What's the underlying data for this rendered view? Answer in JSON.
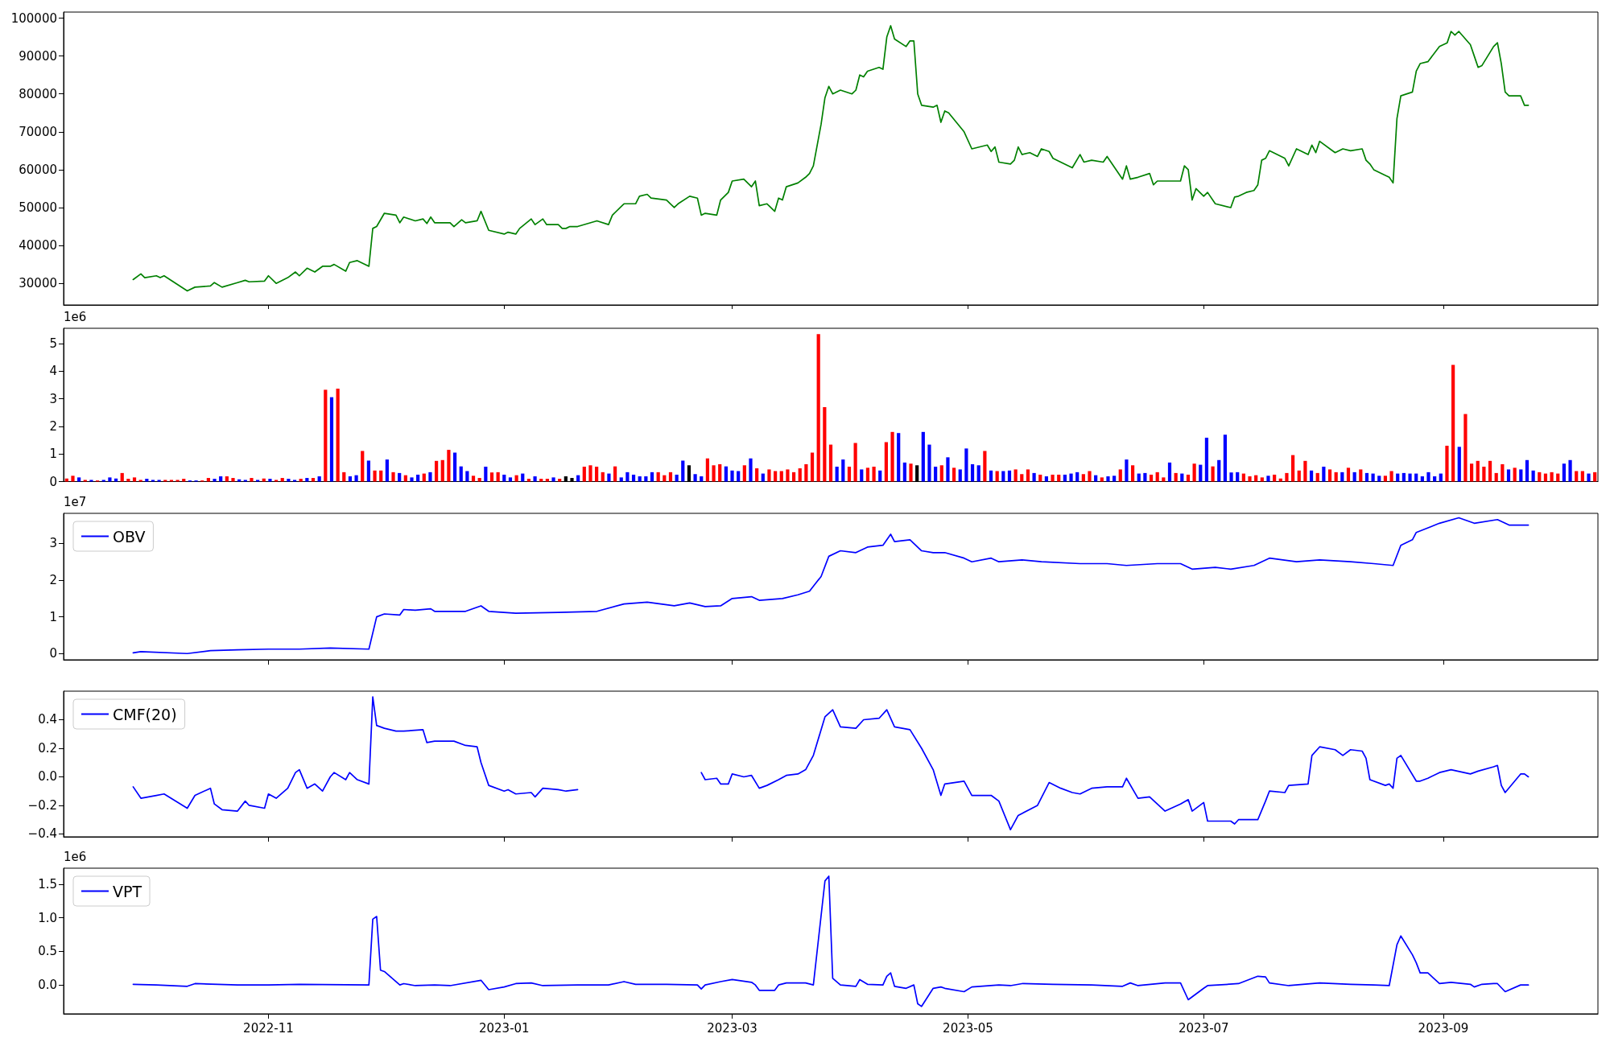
{
  "chart_data": [
    {
      "type": "line",
      "x": [
        "2022-09-27",
        "2022-09-29",
        "2022-09-30",
        "2022-10-03",
        "2022-10-04",
        "2022-10-05",
        "2022-10-11",
        "2022-10-13",
        "2022-10-17",
        "2022-10-18",
        "2022-10-20",
        "2022-10-24",
        "2022-10-26",
        "2022-10-27",
        "2022-10-31",
        "2022-11-01",
        "2022-11-03",
        "2022-11-06",
        "2022-11-08",
        "2022-11-09",
        "2022-11-11",
        "2022-11-13",
        "2022-11-15",
        "2022-11-17",
        "2022-11-18",
        "2022-11-21",
        "2022-11-22",
        "2022-11-24",
        "2022-11-27",
        "2022-11-28",
        "2022-11-29",
        "2022-12-01",
        "2022-12-04",
        "2022-12-05",
        "2022-12-06",
        "2022-12-09",
        "2022-12-11",
        "2022-12-12",
        "2022-12-13",
        "2022-12-14",
        "2022-12-18",
        "2022-12-19",
        "2022-12-21",
        "2022-12-22",
        "2022-12-25",
        "2022-12-26",
        "2022-12-28",
        "2023-01-01",
        "2023-01-02",
        "2023-01-04",
        "2023-01-05",
        "2023-01-08",
        "2023-01-09",
        "2023-01-11",
        "2023-01-12",
        "2023-01-15",
        "2023-01-16",
        "2023-01-17",
        "2023-01-18",
        "2023-01-20",
        "2023-01-25",
        "2023-01-28",
        "2023-01-29",
        "2023-02-01",
        "2023-02-04",
        "2023-02-05",
        "2023-02-07",
        "2023-02-08",
        "2023-02-12",
        "2023-02-14",
        "2023-02-15",
        "2023-02-18",
        "2023-02-20",
        "2023-02-21",
        "2023-02-22",
        "2023-02-25",
        "2023-02-26",
        "2023-02-28",
        "2023-03-01",
        "2023-03-04",
        "2023-03-06",
        "2023-03-07",
        "2023-03-08",
        "2023-03-10",
        "2023-03-12",
        "2023-03-13",
        "2023-03-14",
        "2023-03-15",
        "2023-03-18",
        "2023-03-20",
        "2023-03-21",
        "2023-03-22",
        "2023-03-24",
        "2023-03-25",
        "2023-03-26",
        "2023-03-27",
        "2023-03-29",
        "2023-04-01",
        "2023-04-02",
        "2023-04-03",
        "2023-04-04",
        "2023-04-05",
        "2023-04-08",
        "2023-04-09",
        "2023-04-10",
        "2023-04-11",
        "2023-04-12",
        "2023-04-15",
        "2023-04-16",
        "2023-04-17",
        "2023-04-18",
        "2023-04-19",
        "2023-04-22",
        "2023-04-23",
        "2023-04-24",
        "2023-04-25",
        "2023-04-26",
        "2023-04-30",
        "2023-05-02",
        "2023-05-06",
        "2023-05-07",
        "2023-05-08",
        "2023-05-09",
        "2023-05-12",
        "2023-05-13",
        "2023-05-14",
        "2023-05-15",
        "2023-05-17",
        "2023-05-19",
        "2023-05-20",
        "2023-05-22",
        "2023-05-23",
        "2023-05-25",
        "2023-05-28",
        "2023-05-30",
        "2023-05-31",
        "2023-06-02",
        "2023-06-05",
        "2023-06-06",
        "2023-06-10",
        "2023-06-11",
        "2023-06-12",
        "2023-06-14",
        "2023-06-17",
        "2023-06-18",
        "2023-06-19",
        "2023-06-21",
        "2023-06-25",
        "2023-06-26",
        "2023-06-27",
        "2023-06-28",
        "2023-06-29",
        "2023-07-01",
        "2023-07-02",
        "2023-07-04",
        "2023-07-08",
        "2023-07-09",
        "2023-07-10",
        "2023-07-12",
        "2023-07-14",
        "2023-07-15",
        "2023-07-16",
        "2023-07-17",
        "2023-07-18",
        "2023-07-22",
        "2023-07-23",
        "2023-07-25",
        "2023-07-28",
        "2023-07-29",
        "2023-07-30",
        "2023-07-31",
        "2023-08-04",
        "2023-08-06",
        "2023-08-08",
        "2023-08-11",
        "2023-08-12",
        "2023-08-13",
        "2023-08-14",
        "2023-08-17",
        "2023-08-18",
        "2023-08-19",
        "2023-08-20",
        "2023-08-21",
        "2023-08-24",
        "2023-08-25",
        "2023-08-26",
        "2023-08-28",
        "2023-08-31",
        "2023-09-02",
        "2023-09-03",
        "2023-09-04",
        "2023-09-05",
        "2023-09-08",
        "2023-09-09",
        "2023-09-10",
        "2023-09-11",
        "2023-09-14",
        "2023-09-15",
        "2023-09-16",
        "2023-09-17",
        "2023-09-18",
        "2023-09-21",
        "2023-09-22",
        "2023-09-23"
      ],
      "series": [
        {
          "color": "#008000",
          "values": [
            31000,
            32500,
            31500,
            32000,
            31500,
            32000,
            28000,
            29000,
            29300,
            30200,
            29000,
            30200,
            30800,
            30400,
            30600,
            32000,
            30000,
            31500,
            33000,
            32000,
            34000,
            33000,
            34500,
            34500,
            35000,
            33200,
            35500,
            36000,
            34500,
            44500,
            45000,
            48500,
            48000,
            46000,
            47500,
            46500,
            47000,
            45800,
            47500,
            46000,
            46000,
            45000,
            46800,
            46000,
            46500,
            49000,
            44000,
            43000,
            43500,
            43000,
            44500,
            47000,
            45500,
            47000,
            45500,
            45500,
            44500,
            44500,
            45000,
            45000,
            46500,
            45500,
            48000,
            51000,
            51000,
            53000,
            53500,
            52500,
            52000,
            50000,
            51000,
            53000,
            52500,
            48000,
            48500,
            48000,
            52000,
            54000,
            57000,
            57500,
            55500,
            57000,
            50500,
            51000,
            49000,
            52500,
            52000,
            55500,
            56500,
            58000,
            59000,
            61000,
            72000,
            79000,
            82000,
            80000,
            81000,
            80000,
            81000,
            85000,
            84500,
            86000,
            87000,
            86500,
            95000,
            98000,
            94500,
            92500,
            94000,
            94000,
            80000,
            77000,
            76500,
            77000,
            72500,
            75500,
            75000,
            70000,
            65500,
            66500,
            64800,
            66000,
            62000,
            61500,
            62500,
            66000,
            64000,
            64500,
            63500,
            65500,
            64800,
            63000,
            62000,
            60500,
            64000,
            62000,
            62500,
            62000,
            63500,
            57500,
            61000,
            57500,
            58000,
            59000,
            56000,
            57000,
            57000,
            57000,
            61000,
            60000,
            52000,
            55000,
            53000,
            54000,
            51000,
            50000,
            52800,
            53000,
            54000,
            54500,
            56000,
            62500,
            63000,
            65000,
            63000,
            61000,
            65500,
            64000,
            66500,
            64500,
            67500,
            64500,
            65500,
            65000,
            65500,
            62500,
            61500,
            60000,
            58500,
            58000,
            56500,
            73500,
            79500,
            80500,
            86000,
            88000,
            88500,
            92500,
            93500,
            96500,
            95500,
            96500,
            93000,
            90000,
            87000,
            87500,
            92500,
            93500,
            88000,
            80500,
            79500,
            79500,
            77000,
            77000
          ]
        }
      ],
      "xlim": [
        "2022-09-09",
        "2023-10-11"
      ],
      "xticks": [
        "2022-11",
        "2023-01",
        "2023-03",
        "2023-05",
        "2023-07",
        "2023-09"
      ],
      "ylim": [
        24300,
        101600
      ],
      "yticks": [
        30000,
        40000,
        50000,
        60000,
        70000,
        80000,
        90000,
        100000
      ],
      "tick_labels": "y"
    },
    {
      "type": "bar",
      "categories": [
        null,
        null,
        null,
        null,
        null,
        null,
        null,
        null,
        null,
        null,
        null,
        null,
        null,
        null,
        null,
        null,
        null,
        null,
        null,
        null,
        null,
        null,
        null,
        null,
        null,
        null,
        null,
        null,
        null,
        null,
        null,
        null,
        null,
        null,
        null,
        null,
        null,
        null,
        null,
        null,
        null,
        null,
        null,
        null,
        null,
        null,
        null,
        null,
        null,
        null,
        null,
        null,
        null,
        null,
        null,
        null,
        null,
        null,
        null,
        null,
        null,
        null,
        null,
        null,
        null,
        null,
        null,
        null,
        null,
        null,
        null,
        null,
        null,
        null,
        null,
        null,
        null,
        null,
        null,
        null,
        null,
        null,
        null,
        null,
        null,
        null,
        null,
        null,
        null,
        null,
        null,
        null,
        null,
        null,
        null,
        null,
        null,
        null,
        null,
        null,
        null,
        null,
        null,
        null,
        null,
        null,
        null,
        null,
        null,
        null,
        null,
        null,
        null,
        null,
        null,
        null,
        null,
        null,
        null,
        null,
        null,
        null,
        null,
        null,
        null,
        null,
        null,
        null,
        null,
        null,
        null,
        null,
        null,
        null,
        null,
        null,
        null,
        null,
        null,
        null,
        null,
        null,
        null,
        null,
        null,
        null,
        null,
        null,
        null,
        null,
        null,
        null,
        null,
        null,
        null,
        null,
        null,
        null,
        null,
        null,
        null,
        null,
        null,
        null,
        null,
        null,
        null,
        null,
        null,
        null,
        null,
        null,
        null,
        null,
        null,
        null,
        null,
        null,
        null,
        null,
        null,
        null,
        null,
        null,
        null,
        null,
        null,
        null,
        null,
        null,
        null,
        null,
        null,
        null,
        null,
        null,
        null,
        null,
        null,
        null,
        null,
        null,
        null,
        null,
        null,
        null,
        null,
        null,
        null,
        null,
        null,
        null,
        null,
        null,
        null,
        null,
        null,
        null,
        null,
        null,
        null,
        null,
        null,
        null,
        null,
        null,
        null,
        null,
        null,
        null,
        null,
        null,
        null,
        null,
        null,
        null,
        null,
        null,
        null,
        null,
        null,
        null,
        null,
        null,
        null,
        null,
        null,
        null,
        null
      ],
      "values": [
        0.11,
        0.21,
        0.15,
        0.06,
        0.06,
        0.04,
        0.06,
        0.15,
        0.11,
        0.31,
        0.1,
        0.15,
        0.06,
        0.1,
        0.06,
        0.06,
        0.06,
        0.06,
        0.06,
        0.1,
        0.04,
        0.04,
        0.04,
        0.13,
        0.1,
        0.19,
        0.19,
        0.13,
        0.08,
        0.06,
        0.13,
        0.06,
        0.11,
        0.1,
        0.06,
        0.13,
        0.1,
        0.06,
        0.1,
        0.13,
        0.13,
        0.19,
        3.33,
        3.06,
        3.37,
        0.34,
        0.19,
        0.23,
        1.11,
        0.76,
        0.4,
        0.4,
        0.8,
        0.34,
        0.31,
        0.23,
        0.15,
        0.25,
        0.29,
        0.34,
        0.75,
        0.78,
        1.15,
        1.05,
        0.55,
        0.38,
        0.21,
        0.13,
        0.54,
        0.33,
        0.34,
        0.25,
        0.15,
        0.23,
        0.29,
        0.1,
        0.19,
        0.1,
        0.1,
        0.15,
        0.1,
        0.19,
        0.13,
        0.23,
        0.54,
        0.59,
        0.54,
        0.34,
        0.29,
        0.55,
        0.15,
        0.34,
        0.25,
        0.19,
        0.19,
        0.34,
        0.34,
        0.23,
        0.34,
        0.25,
        0.76,
        0.59,
        0.27,
        0.19,
        0.84,
        0.59,
        0.63,
        0.55,
        0.4,
        0.38,
        0.59,
        0.84,
        0.48,
        0.29,
        0.44,
        0.38,
        0.38,
        0.44,
        0.34,
        0.48,
        0.63,
        1.05,
        5.35,
        2.7,
        1.34,
        0.54,
        0.8,
        0.54,
        1.4,
        0.44,
        0.5,
        0.54,
        0.4,
        1.43,
        1.8,
        1.76,
        0.69,
        0.65,
        0.59,
        1.8,
        1.34,
        0.54,
        0.59,
        0.88,
        0.5,
        0.44,
        1.2,
        0.63,
        0.59,
        1.11,
        0.4,
        0.38,
        0.38,
        0.4,
        0.44,
        0.27,
        0.44,
        0.31,
        0.25,
        0.19,
        0.25,
        0.25,
        0.25,
        0.29,
        0.34,
        0.27,
        0.38,
        0.23,
        0.15,
        0.19,
        0.21,
        0.44,
        0.8,
        0.59,
        0.29,
        0.31,
        0.25,
        0.34,
        0.15,
        0.69,
        0.31,
        0.29,
        0.25,
        0.65,
        0.61,
        1.59,
        0.55,
        0.78,
        1.7,
        0.33,
        0.34,
        0.29,
        0.19,
        0.23,
        0.15,
        0.21,
        0.25,
        0.11,
        0.31,
        0.96,
        0.4,
        0.75,
        0.4,
        0.31,
        0.54,
        0.44,
        0.34,
        0.34,
        0.5,
        0.34,
        0.44,
        0.31,
        0.29,
        0.21,
        0.21,
        0.38,
        0.29,
        0.31,
        0.29,
        0.29,
        0.19,
        0.34,
        0.19,
        0.29,
        1.3,
        4.23,
        1.26,
        2.45,
        0.65,
        0.75,
        0.54,
        0.75,
        0.31,
        0.63,
        0.44,
        0.5,
        0.44,
        0.78,
        0.4,
        0.34,
        0.29,
        0.34,
        0.29,
        0.65,
        0.78,
        0.38,
        0.38,
        0.29,
        0.34
      ],
      "colors": [
        "#ff0000",
        "#ff0000",
        "#0000ff",
        "#ff0000",
        "#0000ff",
        "#ff0000",
        "#0000ff",
        "#0000ff",
        "#0000ff",
        "#ff0000",
        "#ff0000",
        "#ff0000",
        "#ff0000",
        "#0000ff",
        "#0000ff",
        "#0000ff",
        "#ff0000",
        "#ff0000",
        "#ff0000",
        "#ff0000",
        "#0000ff",
        "#0000ff",
        "#ff0000",
        "#ff0000",
        "#0000ff",
        "#0000ff",
        "#ff0000",
        "#ff0000",
        "#0000ff",
        "#0000ff",
        "#ff0000",
        "#0000ff",
        "#ff0000",
        "#0000ff",
        "#ff0000",
        "#ff0000",
        "#0000ff",
        "#0000ff",
        "#ff0000",
        "#0000ff",
        "#ff0000",
        "#0000ff",
        "#ff0000",
        "#0000ff",
        "#ff0000",
        "#ff0000",
        "#0000ff",
        "#0000ff",
        "#ff0000",
        "#0000ff",
        "#ff0000",
        "#ff0000",
        "#0000ff",
        "#ff0000",
        "#0000ff",
        "#ff0000",
        "#0000ff",
        "#0000ff",
        "#ff0000",
        "#0000ff",
        "#ff0000",
        "#ff0000",
        "#ff0000",
        "#0000ff",
        "#0000ff",
        "#0000ff",
        "#ff0000",
        "#ff0000",
        "#0000ff",
        "#ff0000",
        "#ff0000",
        "#0000ff",
        "#0000ff",
        "#ff0000",
        "#0000ff",
        "#ff0000",
        "#0000ff",
        "#ff0000",
        "#ff0000",
        "#0000ff",
        "#ff0000",
        "#000000",
        "#000000",
        "#0000ff",
        "#ff0000",
        "#ff0000",
        "#ff0000",
        "#ff0000",
        "#0000ff",
        "#ff0000",
        "#0000ff",
        "#0000ff",
        "#0000ff",
        "#0000ff",
        "#0000ff",
        "#0000ff",
        "#ff0000",
        "#ff0000",
        "#ff0000",
        "#0000ff",
        "#0000ff",
        "#000000",
        "#0000ff",
        "#0000ff",
        "#ff0000",
        "#ff0000",
        "#ff0000",
        "#0000ff",
        "#0000ff",
        "#0000ff",
        "#ff0000",
        "#0000ff",
        "#ff0000",
        "#0000ff",
        "#ff0000",
        "#ff0000",
        "#ff0000",
        "#ff0000",
        "#ff0000",
        "#ff0000",
        "#ff0000",
        "#ff0000",
        "#ff0000",
        "#ff0000",
        "#ff0000",
        "#0000ff",
        "#0000ff",
        "#ff0000",
        "#ff0000",
        "#0000ff",
        "#ff0000",
        "#ff0000",
        "#0000ff",
        "#ff0000",
        "#ff0000",
        "#0000ff",
        "#0000ff",
        "#ff0000",
        "#000000",
        "#0000ff",
        "#0000ff",
        "#0000ff",
        "#ff0000",
        "#0000ff",
        "#ff0000",
        "#0000ff",
        "#0000ff",
        "#0000ff",
        "#0000ff",
        "#ff0000",
        "#0000ff",
        "#ff0000",
        "#0000ff",
        "#0000ff",
        "#ff0000",
        "#ff0000",
        "#ff0000",
        "#0000ff",
        "#ff0000",
        "#0000ff",
        "#ff0000",
        "#ff0000",
        "#0000ff",
        "#0000ff",
        "#0000ff",
        "#ff0000",
        "#ff0000",
        "#0000ff",
        "#ff0000",
        "#0000ff",
        "#0000ff",
        "#ff0000",
        "#0000ff",
        "#ff0000",
        "#0000ff",
        "#0000ff",
        "#ff0000",
        "#ff0000",
        "#ff0000",
        "#0000ff",
        "#ff0000",
        "#0000ff",
        "#ff0000",
        "#ff0000",
        "#0000ff",
        "#0000ff",
        "#ff0000",
        "#0000ff",
        "#0000ff",
        "#0000ff",
        "#0000ff",
        "#ff0000",
        "#ff0000",
        "#ff0000",
        "#ff0000",
        "#0000ff",
        "#ff0000",
        "#ff0000",
        "#ff0000",
        "#ff0000",
        "#ff0000",
        "#ff0000",
        "#0000ff",
        "#ff0000",
        "#0000ff",
        "#ff0000",
        "#ff0000",
        "#0000ff",
        "#ff0000",
        "#0000ff",
        "#ff0000",
        "#0000ff",
        "#0000ff",
        "#0000ff",
        "#ff0000",
        "#ff0000",
        "#0000ff",
        "#0000ff",
        "#0000ff",
        "#0000ff",
        "#0000ff",
        "#0000ff",
        "#0000ff",
        "#0000ff",
        "#ff0000",
        "#ff0000",
        "#0000ff",
        "#ff0000",
        "#ff0000",
        "#ff0000",
        "#ff0000",
        "#ff0000",
        "#ff0000",
        "#ff0000",
        "#0000ff",
        "#ff0000",
        "#0000ff",
        "#0000ff",
        "#0000ff",
        "#ff0000",
        "#ff0000",
        "#ff0000",
        "#ff0000",
        "#0000ff",
        "#0000ff",
        "#ff0000",
        "#ff0000",
        "#0000ff",
        "#ff0000"
      ],
      "ylim": [
        0,
        5.56
      ],
      "yticks": [
        0,
        1,
        2,
        3,
        4,
        5
      ],
      "tick_labels": "y",
      "annotations": [
        "1e6"
      ]
    },
    {
      "type": "line",
      "x": [
        "2022-09-27",
        "2022-09-29",
        "2022-10-11",
        "2022-10-17",
        "2022-10-24",
        "2022-11-01",
        "2022-11-09",
        "2022-11-17",
        "2022-11-27",
        "2022-11-29",
        "2022-12-01",
        "2022-12-05",
        "2022-12-06",
        "2022-12-09",
        "2022-12-13",
        "2022-12-14",
        "2022-12-22",
        "2022-12-26",
        "2022-12-28",
        "2023-01-04",
        "2023-01-15",
        "2023-01-25",
        "2023-02-01",
        "2023-02-07",
        "2023-02-14",
        "2023-02-18",
        "2023-02-22",
        "2023-02-26",
        "2023-03-01",
        "2023-03-06",
        "2023-03-08",
        "2023-03-14",
        "2023-03-18",
        "2023-03-21",
        "2023-03-24",
        "2023-03-26",
        "2023-03-29",
        "2023-04-02",
        "2023-04-05",
        "2023-04-09",
        "2023-04-11",
        "2023-04-12",
        "2023-04-16",
        "2023-04-19",
        "2023-04-22",
        "2023-04-25",
        "2023-04-30",
        "2023-05-02",
        "2023-05-07",
        "2023-05-09",
        "2023-05-15",
        "2023-05-20",
        "2023-05-30",
        "2023-06-06",
        "2023-06-11",
        "2023-06-19",
        "2023-06-25",
        "2023-06-28",
        "2023-07-04",
        "2023-07-08",
        "2023-07-14",
        "2023-07-18",
        "2023-07-25",
        "2023-07-31",
        "2023-08-08",
        "2023-08-14",
        "2023-08-19",
        "2023-08-21",
        "2023-08-24",
        "2023-08-25",
        "2023-08-31",
        "2023-09-05",
        "2023-09-09",
        "2023-09-15",
        "2023-09-18",
        "2023-09-23"
      ],
      "series": [
        {
          "name": "OBV",
          "color": "#0000ff",
          "values": [
            0.02,
            0.05,
            0.0,
            0.08,
            0.1,
            0.12,
            0.12,
            0.15,
            0.12,
            1.0,
            1.08,
            1.05,
            1.2,
            1.18,
            1.22,
            1.15,
            1.15,
            1.3,
            1.15,
            1.1,
            1.12,
            1.15,
            1.35,
            1.4,
            1.3,
            1.38,
            1.28,
            1.3,
            1.5,
            1.55,
            1.45,
            1.5,
            1.6,
            1.7,
            2.1,
            2.65,
            2.8,
            2.75,
            2.9,
            2.95,
            3.25,
            3.05,
            3.1,
            2.8,
            2.75,
            2.75,
            2.6,
            2.5,
            2.6,
            2.5,
            2.55,
            2.5,
            2.45,
            2.45,
            2.4,
            2.45,
            2.45,
            2.3,
            2.35,
            2.3,
            2.4,
            2.6,
            2.5,
            2.55,
            2.5,
            2.45,
            2.4,
            2.95,
            3.1,
            3.3,
            3.55,
            3.7,
            3.55,
            3.65,
            3.5,
            3.5
          ]
        }
      ],
      "xlim": [
        "2022-09-09",
        "2023-10-11"
      ],
      "xticks": [
        "2022-11",
        "2023-01",
        "2023-03",
        "2023-05",
        "2023-07",
        "2023-09"
      ],
      "ylim": [
        -0.17,
        3.82
      ],
      "yticks": [
        0,
        1,
        2,
        3
      ],
      "tick_labels": "y",
      "legend": "top left",
      "annotations": [
        "1e7"
      ]
    },
    {
      "type": "line",
      "x": [
        "2022-09-27",
        "2022-09-29",
        "2022-10-03",
        "2022-10-05",
        "2022-10-11",
        "2022-10-13",
        "2022-10-17",
        "2022-10-18",
        "2022-10-20",
        "2022-10-24",
        "2022-10-26",
        "2022-10-27",
        "2022-10-31",
        "2022-11-01",
        "2022-11-03",
        "2022-11-06",
        "2022-11-08",
        "2022-11-09",
        "2022-11-11",
        "2022-11-13",
        "2022-11-15",
        "2022-11-17",
        "2022-11-18",
        "2022-11-21",
        "2022-11-22",
        "2022-11-24",
        "2022-11-27",
        "2022-11-28",
        "2022-11-29",
        "2022-12-01",
        "2022-12-04",
        "2022-12-06",
        "2022-12-11",
        "2022-12-12",
        "2022-12-14",
        "2022-12-19",
        "2022-12-22",
        "2022-12-25",
        "2022-12-26",
        "2022-12-28",
        "2023-01-01",
        "2023-01-02",
        "2023-01-04",
        "2023-01-08",
        "2023-01-09",
        "2023-01-11",
        "2023-01-15",
        "2023-01-17",
        "2023-01-20",
        "2023-02-01",
        "2023-02-21",
        "2023-02-22",
        "2023-02-25",
        "2023-02-26",
        "2023-02-28",
        "2023-03-01",
        "2023-03-04",
        "2023-03-06",
        "2023-03-08",
        "2023-03-10",
        "2023-03-13",
        "2023-03-15",
        "2023-03-18",
        "2023-03-20",
        "2023-03-22",
        "2023-03-25",
        "2023-03-27",
        "2023-03-29",
        "2023-04-02",
        "2023-04-04",
        "2023-04-08",
        "2023-04-10",
        "2023-04-12",
        "2023-04-16",
        "2023-04-19",
        "2023-04-22",
        "2023-04-24",
        "2023-04-25",
        "2023-04-30",
        "2023-05-02",
        "2023-05-07",
        "2023-05-09",
        "2023-05-12",
        "2023-05-14",
        "2023-05-19",
        "2023-05-22",
        "2023-05-25",
        "2023-05-28",
        "2023-05-30",
        "2023-06-02",
        "2023-06-06",
        "2023-06-10",
        "2023-06-11",
        "2023-06-14",
        "2023-06-17",
        "2023-06-21",
        "2023-06-25",
        "2023-06-27",
        "2023-06-28",
        "2023-07-01",
        "2023-07-02",
        "2023-07-08",
        "2023-07-09",
        "2023-07-10",
        "2023-07-15",
        "2023-07-17",
        "2023-07-18",
        "2023-07-22",
        "2023-07-23",
        "2023-07-28",
        "2023-07-29",
        "2023-07-31",
        "2023-08-04",
        "2023-08-06",
        "2023-08-08",
        "2023-08-11",
        "2023-08-12",
        "2023-08-13",
        "2023-08-17",
        "2023-08-18",
        "2023-08-19",
        "2023-08-20",
        "2023-08-21",
        "2023-08-25",
        "2023-08-26",
        "2023-08-28",
        "2023-08-31",
        "2023-09-03",
        "2023-09-08",
        "2023-09-10",
        "2023-09-14",
        "2023-09-15",
        "2023-09-16",
        "2023-09-17",
        "2023-09-21",
        "2023-09-22",
        "2023-09-23"
      ],
      "series": [
        {
          "name": "CMF(20)",
          "color": "#0000ff",
          "values": [
            -0.07,
            -0.15,
            -0.13,
            -0.12,
            -0.22,
            -0.13,
            -0.08,
            -0.19,
            -0.23,
            -0.24,
            -0.17,
            -0.2,
            -0.22,
            -0.12,
            -0.15,
            -0.08,
            0.03,
            0.05,
            -0.08,
            -0.05,
            -0.1,
            0.0,
            0.03,
            -0.02,
            0.03,
            -0.02,
            -0.05,
            0.56,
            0.36,
            0.34,
            0.32,
            0.32,
            0.33,
            0.24,
            0.25,
            0.25,
            0.22,
            0.21,
            0.1,
            -0.06,
            -0.1,
            -0.09,
            -0.12,
            -0.11,
            -0.14,
            -0.08,
            -0.09,
            -0.1,
            -0.09,
            null,
            0.03,
            -0.02,
            -0.01,
            -0.05,
            -0.05,
            0.02,
            0.0,
            0.01,
            -0.08,
            -0.06,
            -0.02,
            0.01,
            0.02,
            0.05,
            0.15,
            0.42,
            0.47,
            0.35,
            0.34,
            0.4,
            0.41,
            0.47,
            0.35,
            0.33,
            0.2,
            0.05,
            -0.13,
            -0.05,
            -0.03,
            -0.13,
            -0.13,
            -0.17,
            -0.37,
            -0.27,
            -0.2,
            -0.04,
            -0.08,
            -0.11,
            -0.12,
            -0.08,
            -0.07,
            -0.07,
            -0.01,
            -0.15,
            -0.14,
            -0.24,
            -0.19,
            -0.16,
            -0.24,
            -0.18,
            -0.31,
            -0.31,
            -0.33,
            -0.3,
            -0.3,
            -0.17,
            -0.1,
            -0.11,
            -0.06,
            -0.05,
            0.15,
            0.21,
            0.19,
            0.15,
            0.19,
            0.18,
            0.13,
            -0.02,
            -0.06,
            -0.05,
            -0.08,
            0.13,
            0.15,
            -0.03,
            -0.03,
            -0.01,
            0.03,
            0.05,
            0.02,
            0.04,
            0.07,
            0.08,
            -0.06,
            -0.11,
            0.02,
            0.02,
            0.0
          ]
        }
      ],
      "xlim": [
        "2022-09-09",
        "2023-10-11"
      ],
      "xticks": [
        "2022-11",
        "2023-01",
        "2023-03",
        "2023-05",
        "2023-07",
        "2023-09"
      ],
      "ylim": [
        -0.42,
        0.6
      ],
      "yticks": [
        {
          "value": -0.4,
          "label": "−0.4"
        },
        {
          "value": -0.2,
          "label": "−0.2"
        },
        {
          "value": 0,
          "label": "0.0"
        },
        {
          "value": 0.2,
          "label": "0.2"
        },
        {
          "value": 0.4,
          "label": "0.4"
        }
      ],
      "tick_labels": "y",
      "legend": "top left"
    },
    {
      "type": "line",
      "x": [
        "2022-09-27",
        "2022-10-03",
        "2022-10-11",
        "2022-10-13",
        "2022-10-24",
        "2022-11-01",
        "2022-11-09",
        "2022-11-27",
        "2022-11-28",
        "2022-11-29",
        "2022-11-30",
        "2022-12-01",
        "2022-12-05",
        "2022-12-06",
        "2022-12-09",
        "2022-12-14",
        "2022-12-18",
        "2022-12-26",
        "2022-12-28",
        "2023-01-01",
        "2023-01-04",
        "2023-01-08",
        "2023-01-11",
        "2023-01-20",
        "2023-01-28",
        "2023-02-01",
        "2023-02-04",
        "2023-02-12",
        "2023-02-20",
        "2023-02-21",
        "2023-02-22",
        "2023-02-26",
        "2023-03-01",
        "2023-03-06",
        "2023-03-07",
        "2023-03-08",
        "2023-03-12",
        "2023-03-13",
        "2023-03-15",
        "2023-03-20",
        "2023-03-22",
        "2023-03-25",
        "2023-03-26",
        "2023-03-27",
        "2023-03-29",
        "2023-04-02",
        "2023-04-03",
        "2023-04-05",
        "2023-04-09",
        "2023-04-10",
        "2023-04-11",
        "2023-04-12",
        "2023-04-15",
        "2023-04-17",
        "2023-04-18",
        "2023-04-19",
        "2023-04-22",
        "2023-04-24",
        "2023-04-25",
        "2023-04-30",
        "2023-05-02",
        "2023-05-09",
        "2023-05-12",
        "2023-05-15",
        "2023-05-23",
        "2023-06-02",
        "2023-06-10",
        "2023-06-12",
        "2023-06-14",
        "2023-06-21",
        "2023-06-25",
        "2023-06-27",
        "2023-07-01",
        "2023-07-02",
        "2023-07-10",
        "2023-07-15",
        "2023-07-17",
        "2023-07-18",
        "2023-07-23",
        "2023-07-31",
        "2023-08-08",
        "2023-08-14",
        "2023-08-18",
        "2023-08-20",
        "2023-08-21",
        "2023-08-24",
        "2023-08-25",
        "2023-08-26",
        "2023-08-28",
        "2023-08-31",
        "2023-09-03",
        "2023-09-08",
        "2023-09-09",
        "2023-09-11",
        "2023-09-14",
        "2023-09-15",
        "2023-09-17",
        "2023-09-21",
        "2023-09-23"
      ],
      "series": [
        {
          "name": "VPT",
          "color": "#0000ff",
          "values": [
            0.01,
            0.0,
            -0.02,
            0.02,
            0.0,
            0.0,
            0.01,
            0.0,
            0.98,
            1.02,
            0.22,
            0.2,
            0.0,
            0.02,
            -0.01,
            0.0,
            -0.01,
            0.07,
            -0.07,
            -0.03,
            0.02,
            0.03,
            -0.01,
            0.0,
            0.0,
            0.05,
            0.01,
            0.01,
            0.0,
            -0.06,
            0.0,
            0.05,
            0.08,
            0.04,
            0.0,
            -0.08,
            -0.08,
            0.0,
            0.03,
            0.03,
            0.0,
            1.55,
            1.62,
            0.1,
            0.0,
            -0.02,
            0.08,
            0.01,
            0.0,
            0.13,
            0.18,
            -0.02,
            -0.05,
            0.0,
            -0.28,
            -0.32,
            -0.05,
            -0.03,
            -0.05,
            -0.1,
            -0.03,
            0.0,
            -0.01,
            0.02,
            0.01,
            0.0,
            -0.02,
            0.03,
            -0.01,
            0.03,
            0.03,
            -0.22,
            -0.05,
            -0.01,
            0.02,
            0.13,
            0.12,
            0.03,
            -0.01,
            0.03,
            0.01,
            0.0,
            -0.01,
            0.6,
            0.73,
            0.45,
            0.33,
            0.18,
            0.18,
            0.02,
            0.04,
            0.01,
            -0.03,
            0.01,
            0.02,
            0.02,
            -0.1,
            0.0,
            0.0
          ]
        }
      ],
      "xlim": [
        "2022-09-09",
        "2023-10-11"
      ],
      "xticks": [
        "2022-11",
        "2023-01",
        "2023-03",
        "2023-05",
        "2023-07",
        "2023-09"
      ],
      "ylim": [
        -0.43,
        1.74
      ],
      "yticks": [
        {
          "value": 0,
          "label": "0.0"
        },
        {
          "value": 0.5,
          "label": "0.5"
        },
        {
          "value": 1,
          "label": "1.0"
        },
        {
          "value": 1.5,
          "label": "1.5"
        }
      ],
      "legend": "top left",
      "annotations": [
        "1e6"
      ]
    }
  ]
}
